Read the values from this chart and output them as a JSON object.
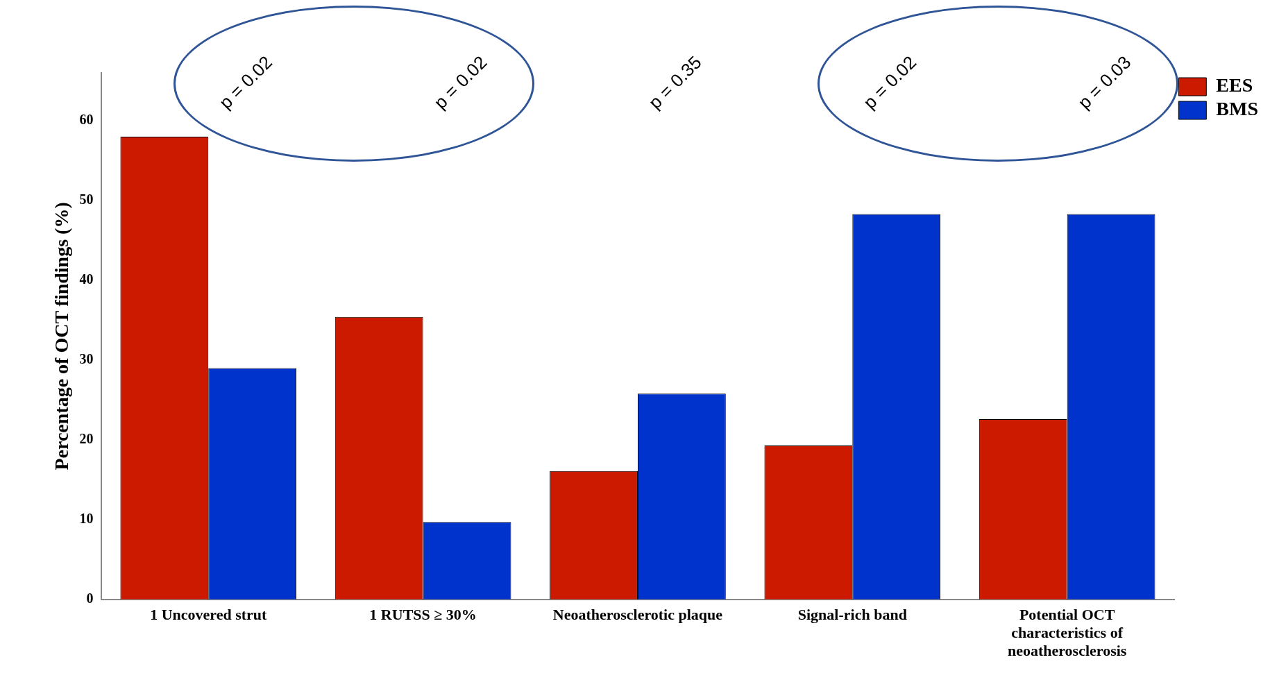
{
  "chart_data": {
    "type": "bar",
    "ylabel": "Percentage of OCT findings (%)",
    "categories": [
      "1 Uncovered strut",
      "1 RUTSS ≥ 30%",
      "Neoatherosclerotic plaque",
      "Signal-rich band",
      "Potential OCT characteristics of neoatherosclerosis"
    ],
    "series": [
      {
        "name": "EES",
        "color": "#cc1a00",
        "values": [
          58,
          35.4,
          16.1,
          19.3,
          22.6
        ]
      },
      {
        "name": "BMS",
        "color": "#0033cc",
        "values": [
          29,
          9.7,
          25.8,
          48.3,
          48.3
        ]
      }
    ],
    "ylim": [
      0,
      66
    ],
    "yticks": [
      0,
      10,
      20,
      30,
      40,
      50,
      60
    ],
    "grid": false,
    "legend": "top right",
    "annotations": [
      "p = 0.02",
      "p = 0.02",
      "p = 0.35",
      "p = 0.02",
      "p = 0.03"
    ]
  }
}
